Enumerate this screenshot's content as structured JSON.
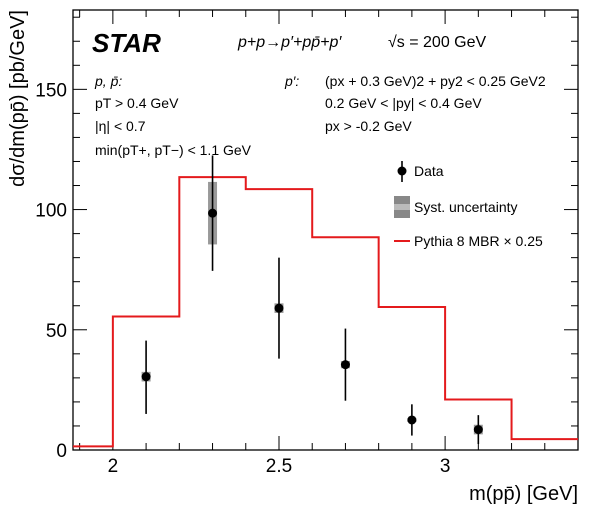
{
  "chart_data": {
    "type": "histogram",
    "experiment": "STAR",
    "reaction": "p+p→p′+pp̄+p′",
    "energy": "√s = 200 GeV",
    "cuts_left": {
      "title": "p, p̄:",
      "lines": [
        "pT > 0.4 GeV",
        "|η| < 0.7",
        "min(pT+, pT−) < 1.1 GeV"
      ]
    },
    "cuts_right": {
      "title": "p′:",
      "lines": [
        "(px + 0.3 GeV)2 + py2 < 0.25 GeV2",
        "0.2 GeV < |py| < 0.4 GeV",
        "px > -0.2 GeV"
      ]
    },
    "xlabel": "m(pp̄) [GeV]",
    "ylabel": "dσ/dm(pp̄) [pb/GeV]",
    "xlim": [
      1.88,
      3.4
    ],
    "ylim": [
      0,
      183
    ],
    "xticks": [
      2,
      2.5,
      3
    ],
    "xtick_labels": [
      "2",
      "2.5",
      "3"
    ],
    "yticks": [
      0,
      50,
      100,
      150
    ],
    "ytick_labels": [
      "0",
      "50",
      "100",
      "150"
    ],
    "legend": {
      "position": "right",
      "entries": [
        "Data",
        "Syst. uncertainty",
        "Pythia 8 MBR × 0.25"
      ]
    },
    "series": [
      {
        "name": "Data",
        "x": [
          2.1,
          2.3,
          2.5,
          2.7,
          2.9,
          3.1
        ],
        "y": [
          30.5,
          98.5,
          59,
          35.5,
          12.5,
          8.5
        ],
        "err_low": [
          15.5,
          24,
          21,
          15,
          6.5,
          6
        ],
        "err_high": [
          15,
          24,
          21,
          15,
          6.5,
          6
        ],
        "syst_low": [
          2,
          13,
          2,
          1.5,
          0.8,
          2
        ],
        "syst_high": [
          2,
          13,
          2,
          1.5,
          0.8,
          2
        ],
        "color": "#000000"
      },
      {
        "name": "Pythia 8 MBR × 0.25",
        "type": "step",
        "bin_edges": [
          1.88,
          2.0,
          2.2,
          2.4,
          2.6,
          2.8,
          3.0,
          3.2,
          3.4
        ],
        "values": [
          1.5,
          55.5,
          113.5,
          108.5,
          88.5,
          59.5,
          21,
          4.5
        ],
        "color": "#e41a1c"
      }
    ]
  }
}
